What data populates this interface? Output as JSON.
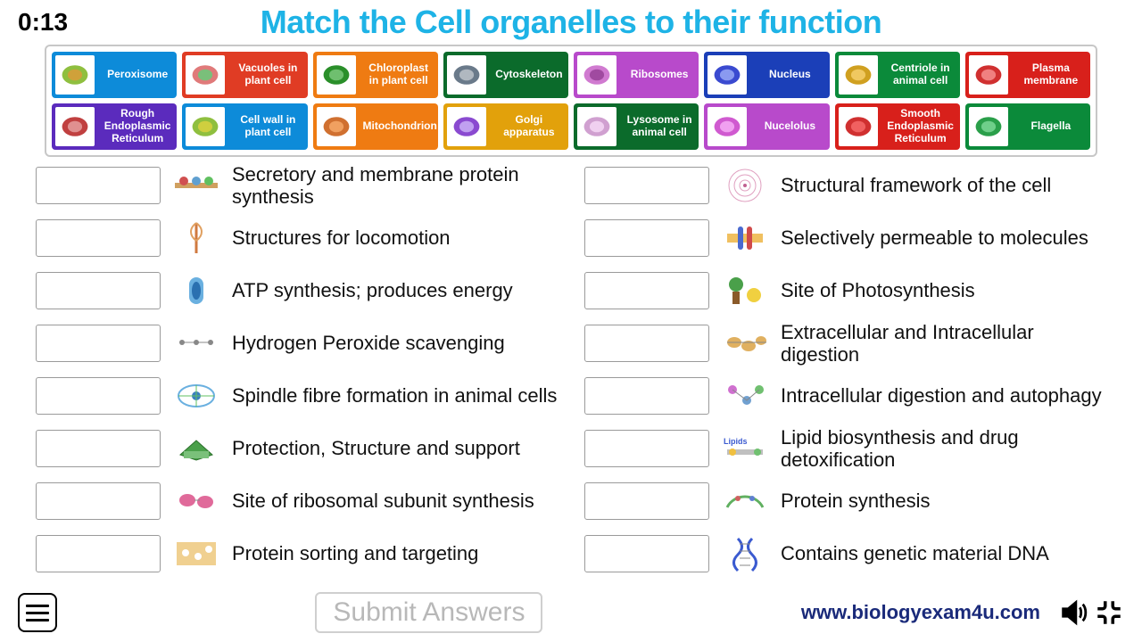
{
  "timer": "0:13",
  "title": "Match the Cell organelles to their function",
  "title_color": "#1eb3e6",
  "tile_rows": [
    [
      {
        "label": "Peroxisome",
        "color": "#0d8bd9"
      },
      {
        "label": "Vacuoles in plant cell",
        "color": "#e03c24"
      },
      {
        "label": "Chloroplast in plant cell",
        "color": "#ef7b12"
      },
      {
        "label": "Cytoskeleton",
        "color": "#0b6b2b"
      },
      {
        "label": "Ribosomes",
        "color": "#b84acb"
      },
      {
        "label": "Nucleus",
        "color": "#1b3fb8"
      },
      {
        "label": "Centriole in animal cell",
        "color": "#0b8a3a"
      },
      {
        "label": "Plasma membrane",
        "color": "#d8201b"
      }
    ],
    [
      {
        "label": "Rough Endoplasmic Reticulum",
        "color": "#5b2bbd"
      },
      {
        "label": "Cell wall in plant cell",
        "color": "#0d8bd9"
      },
      {
        "label": "Mitochondrion",
        "color": "#ef7b12"
      },
      {
        "label": "Golgi apparatus",
        "color": "#e2a10b"
      },
      {
        "label": "Lysosome in animal cell",
        "color": "#0b6b2b"
      },
      {
        "label": "Nucelolus",
        "color": "#b84acb"
      },
      {
        "label": "Smooth Endoplasmic Reticulum",
        "color": "#d8201b"
      },
      {
        "label": "Flagella",
        "color": "#0b8a3a"
      }
    ]
  ],
  "questions_left": [
    {
      "text": "Secretory and membrane protein synthesis"
    },
    {
      "text": "Structures for locomotion"
    },
    {
      "text": "ATP synthesis; produces energy"
    },
    {
      "text": "Hydrogen Peroxide scavenging"
    },
    {
      "text": "Spindle fibre formation in animal cells"
    },
    {
      "text": "Protection, Structure and support"
    },
    {
      "text": "Site of ribosomal subunit synthesis"
    },
    {
      "text": "Protein sorting and targeting"
    }
  ],
  "questions_right": [
    {
      "text": "Structural framework of the cell"
    },
    {
      "text": "Selectively permeable to molecules"
    },
    {
      "text": "Site of Photosynthesis"
    },
    {
      "text": "Extracellular and Intracellular digestion"
    },
    {
      "text": "Intracellular digestion and autophagy"
    },
    {
      "text": "Lipid biosynthesis and drug detoxification"
    },
    {
      "text": "Protein synthesis"
    },
    {
      "text": "Contains genetic material DNA"
    }
  ],
  "submit_label": "Submit Answers",
  "site_url": "www.biologyexam4u.com",
  "colors": {
    "border_gray": "#c7c7c7",
    "dropbox_border": "#9a9a9a",
    "submit_text": "#b8b8b8",
    "url_color": "#1a2a7a"
  }
}
